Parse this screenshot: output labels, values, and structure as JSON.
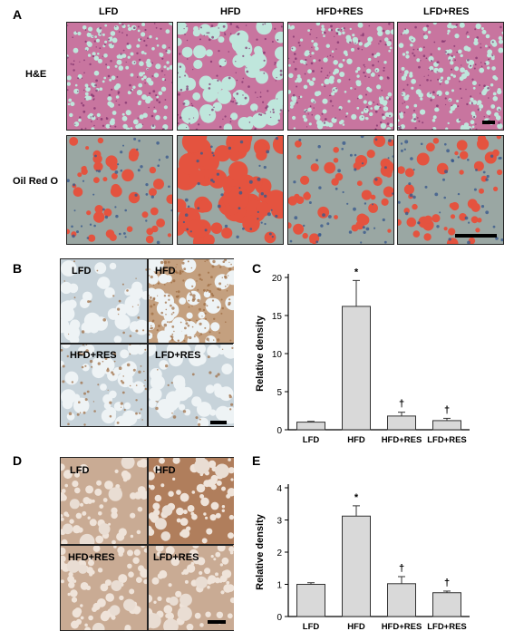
{
  "panel_letters": [
    "A",
    "B",
    "C",
    "D",
    "E"
  ],
  "panelA": {
    "columns": [
      "LFD",
      "HFD",
      "HFD+RES",
      "LFD+RES"
    ],
    "rows": [
      "H&E",
      "Oil Red O"
    ]
  },
  "panelB": {
    "cells": [
      "LFD",
      "HFD",
      "HFD+RES",
      "LFD+RES"
    ]
  },
  "panelD": {
    "cells": [
      "LFD",
      "HFD",
      "HFD+RES",
      "LFD+RES"
    ]
  },
  "colors": {
    "he_bg": "#c8759f",
    "he_vacuole": "#bfe6dc",
    "oil_bg": "#9aa7a3",
    "oil_drop": "#e4533f",
    "ihc_bg": "#c7d3da",
    "ihc_vacuole": "#eef3f5",
    "ihc_brown": "#9c6a3f",
    "d_bg": "#c9ab94",
    "d_vacuole": "#efe3d9",
    "bar_fill": "#d9d9d9"
  },
  "chart_data": [
    {
      "type": "bar",
      "categories": [
        "LFD",
        "HFD",
        "HFD+RES",
        "LFD+RES"
      ],
      "values": [
        1.0,
        16.2,
        1.8,
        1.2
      ],
      "errors": [
        0.1,
        3.4,
        0.5,
        0.3
      ],
      "markers": [
        "",
        "*",
        "†",
        "†"
      ],
      "ylabel": "Relative density",
      "ylim": [
        0,
        20
      ],
      "yticks": [
        "0",
        "5",
        "10",
        "15",
        "20"
      ],
      "tick_values": [
        0,
        5,
        10,
        15,
        20
      ]
    },
    {
      "type": "bar",
      "categories": [
        "LFD",
        "HFD",
        "HFD+RES",
        "LFD+RES"
      ],
      "values": [
        1.0,
        3.12,
        1.02,
        0.74
      ],
      "errors": [
        0.05,
        0.32,
        0.22,
        0.05
      ],
      "markers": [
        "",
        "*",
        "†",
        "†"
      ],
      "ylabel": "Relative density",
      "ylim": [
        0,
        4
      ],
      "yticks": [
        "0",
        "1",
        "2",
        "3",
        "4"
      ],
      "tick_values": [
        0,
        1,
        2,
        3,
        4
      ]
    }
  ]
}
